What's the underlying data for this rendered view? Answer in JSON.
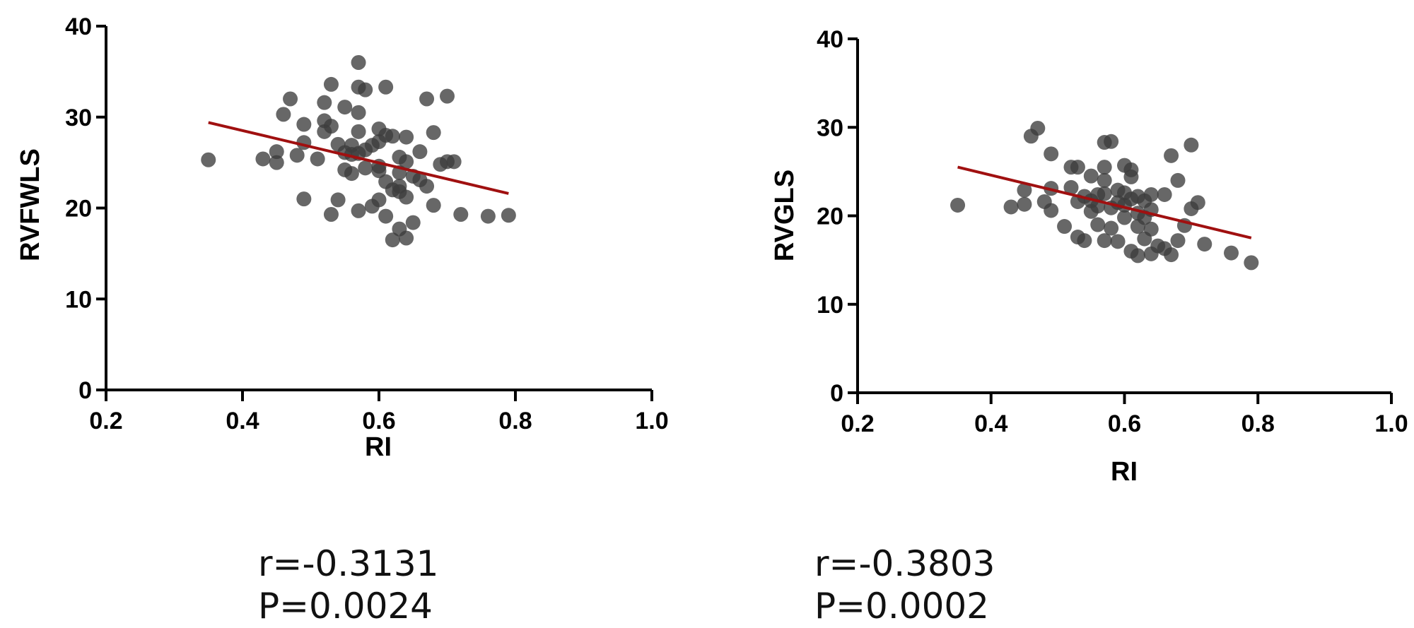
{
  "chart_data": [
    {
      "type": "scatter",
      "title": "",
      "xlabel": "RI",
      "ylabel": "RVFWLS",
      "xlim": [
        0.2,
        1.0
      ],
      "ylim": [
        0,
        40
      ],
      "xticks": [
        "0.2",
        "0.4",
        "0.6",
        "0.8",
        "1.0"
      ],
      "yticks": [
        "0",
        "10",
        "20",
        "30",
        "40"
      ],
      "grid": false,
      "fit_line": {
        "x": [
          0.35,
          0.79
        ],
        "y": [
          29.4,
          21.6
        ],
        "color": "#a01010"
      },
      "stats": {
        "r": "r=-0.3131",
        "p": "P=0.0024"
      },
      "points": [
        [
          0.35,
          25.3
        ],
        [
          0.43,
          25.4
        ],
        [
          0.45,
          26.2
        ],
        [
          0.45,
          25.0
        ],
        [
          0.46,
          30.3
        ],
        [
          0.47,
          32.0
        ],
        [
          0.48,
          25.8
        ],
        [
          0.49,
          29.2
        ],
        [
          0.49,
          27.2
        ],
        [
          0.49,
          21.0
        ],
        [
          0.51,
          25.4
        ],
        [
          0.52,
          31.6
        ],
        [
          0.52,
          29.6
        ],
        [
          0.52,
          28.4
        ],
        [
          0.53,
          33.6
        ],
        [
          0.53,
          29.0
        ],
        [
          0.53,
          19.3
        ],
        [
          0.54,
          27.0
        ],
        [
          0.54,
          20.9
        ],
        [
          0.55,
          31.1
        ],
        [
          0.55,
          26.1
        ],
        [
          0.55,
          24.2
        ],
        [
          0.56,
          26.9
        ],
        [
          0.56,
          25.9
        ],
        [
          0.56,
          23.8
        ],
        [
          0.57,
          36.0
        ],
        [
          0.57,
          33.3
        ],
        [
          0.57,
          30.5
        ],
        [
          0.57,
          28.4
        ],
        [
          0.57,
          26.0
        ],
        [
          0.57,
          19.7
        ],
        [
          0.58,
          33.0
        ],
        [
          0.58,
          26.4
        ],
        [
          0.58,
          24.4
        ],
        [
          0.59,
          26.9
        ],
        [
          0.59,
          20.2
        ],
        [
          0.6,
          28.7
        ],
        [
          0.6,
          27.3
        ],
        [
          0.6,
          24.6
        ],
        [
          0.6,
          24.1
        ],
        [
          0.6,
          20.9
        ],
        [
          0.61,
          33.3
        ],
        [
          0.61,
          28.0
        ],
        [
          0.61,
          22.9
        ],
        [
          0.61,
          19.1
        ],
        [
          0.62,
          27.9
        ],
        [
          0.62,
          22.0
        ],
        [
          0.62,
          16.5
        ],
        [
          0.63,
          25.6
        ],
        [
          0.63,
          23.9
        ],
        [
          0.63,
          22.4
        ],
        [
          0.63,
          21.8
        ],
        [
          0.63,
          17.7
        ],
        [
          0.64,
          27.8
        ],
        [
          0.64,
          25.1
        ],
        [
          0.64,
          21.2
        ],
        [
          0.64,
          16.7
        ],
        [
          0.65,
          23.5
        ],
        [
          0.65,
          18.4
        ],
        [
          0.66,
          26.2
        ],
        [
          0.66,
          23.1
        ],
        [
          0.67,
          32.0
        ],
        [
          0.67,
          22.4
        ],
        [
          0.68,
          28.3
        ],
        [
          0.68,
          20.3
        ],
        [
          0.69,
          24.8
        ],
        [
          0.7,
          32.3
        ],
        [
          0.7,
          25.1
        ],
        [
          0.71,
          25.1
        ],
        [
          0.72,
          19.3
        ],
        [
          0.76,
          19.1
        ],
        [
          0.79,
          19.2
        ]
      ]
    },
    {
      "type": "scatter",
      "title": "",
      "xlabel": "RI",
      "ylabel": "RVGLS",
      "xlim": [
        0.2,
        1.0
      ],
      "ylim": [
        0,
        40
      ],
      "xticks": [
        "0.2",
        "0.4",
        "0.6",
        "0.8",
        "1.0"
      ],
      "yticks": [
        "0",
        "10",
        "20",
        "30",
        "40"
      ],
      "grid": false,
      "fit_line": {
        "x": [
          0.35,
          0.79
        ],
        "y": [
          25.5,
          17.5
        ],
        "color": "#a01010"
      },
      "stats": {
        "r": "r=-0.3803",
        "p": "P=0.0002"
      },
      "points": [
        [
          0.35,
          21.2
        ],
        [
          0.43,
          21.0
        ],
        [
          0.45,
          22.9
        ],
        [
          0.45,
          21.3
        ],
        [
          0.46,
          29.0
        ],
        [
          0.47,
          29.9
        ],
        [
          0.48,
          21.6
        ],
        [
          0.49,
          27.0
        ],
        [
          0.49,
          23.1
        ],
        [
          0.49,
          20.6
        ],
        [
          0.51,
          18.8
        ],
        [
          0.52,
          25.5
        ],
        [
          0.52,
          23.2
        ],
        [
          0.53,
          25.5
        ],
        [
          0.53,
          21.6
        ],
        [
          0.53,
          17.6
        ],
        [
          0.54,
          22.2
        ],
        [
          0.54,
          17.2
        ],
        [
          0.55,
          24.5
        ],
        [
          0.55,
          21.7
        ],
        [
          0.55,
          20.5
        ],
        [
          0.56,
          22.4
        ],
        [
          0.56,
          21.1
        ],
        [
          0.56,
          19.0
        ],
        [
          0.57,
          28.3
        ],
        [
          0.57,
          25.5
        ],
        [
          0.57,
          24.0
        ],
        [
          0.57,
          22.5
        ],
        [
          0.57,
          17.2
        ],
        [
          0.58,
          28.4
        ],
        [
          0.58,
          20.9
        ],
        [
          0.58,
          18.6
        ],
        [
          0.59,
          22.9
        ],
        [
          0.59,
          21.5
        ],
        [
          0.59,
          17.1
        ],
        [
          0.6,
          25.7
        ],
        [
          0.6,
          22.6
        ],
        [
          0.6,
          21.2
        ],
        [
          0.6,
          19.8
        ],
        [
          0.61,
          25.2
        ],
        [
          0.61,
          24.4
        ],
        [
          0.61,
          21.9
        ],
        [
          0.61,
          16.0
        ],
        [
          0.62,
          22.2
        ],
        [
          0.62,
          20.3
        ],
        [
          0.62,
          18.8
        ],
        [
          0.62,
          15.5
        ],
        [
          0.63,
          21.7
        ],
        [
          0.63,
          19.8
        ],
        [
          0.63,
          17.4
        ],
        [
          0.64,
          22.4
        ],
        [
          0.64,
          20.7
        ],
        [
          0.64,
          18.5
        ],
        [
          0.64,
          15.7
        ],
        [
          0.65,
          16.6
        ],
        [
          0.66,
          22.4
        ],
        [
          0.66,
          16.3
        ],
        [
          0.67,
          26.8
        ],
        [
          0.67,
          15.6
        ],
        [
          0.68,
          24.0
        ],
        [
          0.68,
          17.2
        ],
        [
          0.69,
          18.9
        ],
        [
          0.7,
          28.0
        ],
        [
          0.7,
          20.8
        ],
        [
          0.71,
          21.5
        ],
        [
          0.72,
          16.8
        ],
        [
          0.76,
          15.8
        ],
        [
          0.79,
          14.7
        ]
      ]
    }
  ]
}
